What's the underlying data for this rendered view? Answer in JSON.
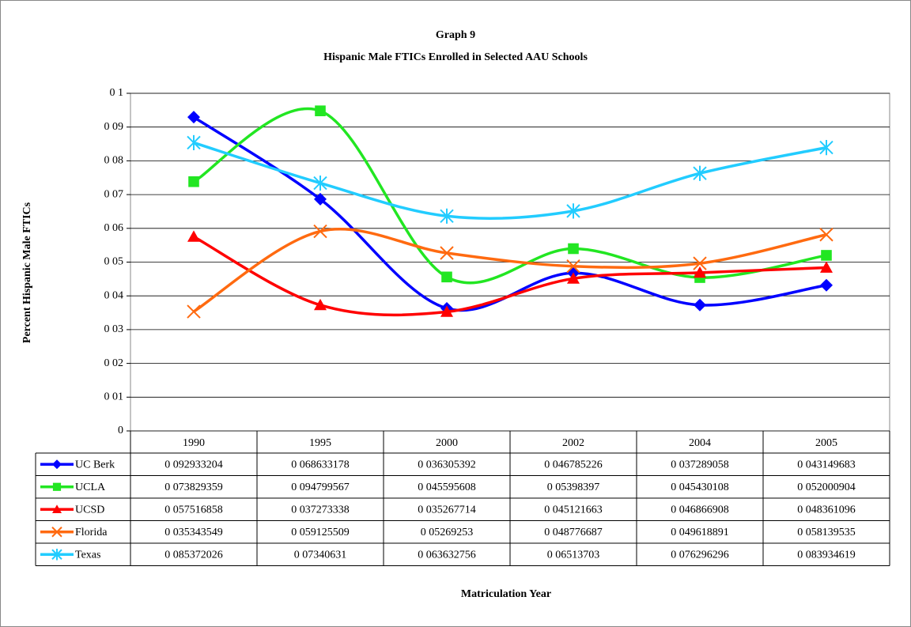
{
  "chart_data": {
    "type": "line",
    "title": "Graph 9",
    "subtitle": "Hispanic Male FTICs Enrolled in Selected AAU Schools",
    "y_label": "Percent Hispanic Male FTICs",
    "x_label": "Matriculation Year",
    "categories": [
      "1990",
      "1995",
      "2000",
      "2002",
      "2004",
      "2005"
    ],
    "ylim": [
      0,
      0.1
    ],
    "yticks": [
      0,
      {
        "value": 0.01,
        "label": "0 01"
      },
      {
        "value": 0.02,
        "label": "0 02"
      },
      {
        "value": 0.03,
        "label": "0 03"
      },
      {
        "value": 0.04,
        "label": "0 04"
      },
      {
        "value": 0.05,
        "label": "0 05"
      },
      {
        "value": 0.06,
        "label": "0 06"
      },
      {
        "value": 0.07,
        "label": "0 07"
      },
      {
        "value": 0.08,
        "label": "0 08"
      },
      {
        "value": 0.09,
        "label": "0 09"
      },
      {
        "value": 0.1,
        "label": "0 1"
      }
    ],
    "grid": true,
    "smooth": true,
    "series": [
      {
        "name": "UC Berk",
        "color": "#0000ff",
        "marker": "diamond",
        "values": [
          0.092933204,
          0.068633178,
          0.036305392,
          0.046785226,
          0.037289058,
          0.043149683
        ],
        "value_labels": [
          "0 092933204",
          "0 068633178",
          "0 036305392",
          "0 046785226",
          "0 037289058",
          "0 043149683"
        ]
      },
      {
        "name": "UCLA",
        "color": "#22e622",
        "marker": "square",
        "values": [
          0.073829359,
          0.094799567,
          0.045595608,
          0.05398397,
          0.045430108,
          0.052000904
        ],
        "value_labels": [
          "0 073829359",
          "0 094799567",
          "0 045595608",
          "0 05398397",
          "0 045430108",
          "0 052000904"
        ]
      },
      {
        "name": "UCSD",
        "color": "#ff0000",
        "marker": "triangle",
        "values": [
          0.057516858,
          0.037273338,
          0.035267714,
          0.045121663,
          0.046866908,
          0.048361096
        ],
        "value_labels": [
          "0 057516858",
          "0 037273338",
          "0 035267714",
          "0 045121663",
          "0 046866908",
          "0 048361096"
        ]
      },
      {
        "name": "Florida",
        "color": "#ff6a10",
        "marker": "x",
        "values": [
          0.035343549,
          0.059125509,
          0.05269253,
          0.048776687,
          0.049618891,
          0.058139535
        ],
        "value_labels": [
          "0 035343549",
          "0 059125509",
          "0 05269253",
          "0 048776687",
          "0 049618891",
          "0 058139535"
        ]
      },
      {
        "name": "Texas",
        "color": "#22ccff",
        "marker": "star",
        "values": [
          0.085372026,
          0.07340631,
          0.063632756,
          0.06513703,
          0.076296296,
          0.083934619
        ],
        "value_labels": [
          "0 085372026",
          "0 07340631",
          "0 063632756",
          "0 06513703",
          "0 076296296",
          "0 083934619"
        ]
      }
    ]
  }
}
